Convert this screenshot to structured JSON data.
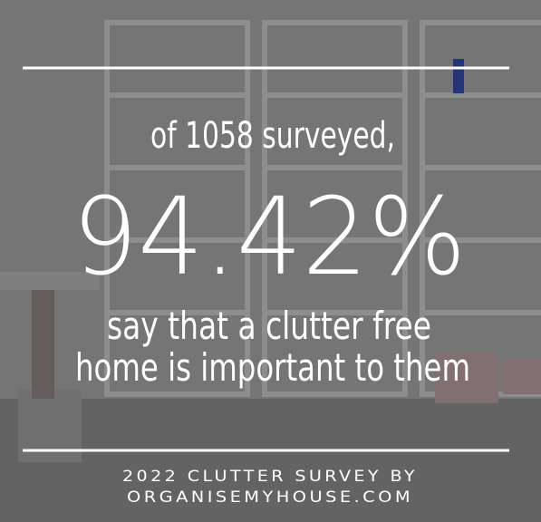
{
  "headline": {
    "intro": "of 1058 surveyed,",
    "stat": "94.42%",
    "lines": [
      "say that a clutter free",
      "home is important to them"
    ]
  },
  "footer": {
    "lines": [
      "2022 CLUTTER SURVEY BY",
      "ORGANISEMYHOUSE.COM"
    ]
  }
}
